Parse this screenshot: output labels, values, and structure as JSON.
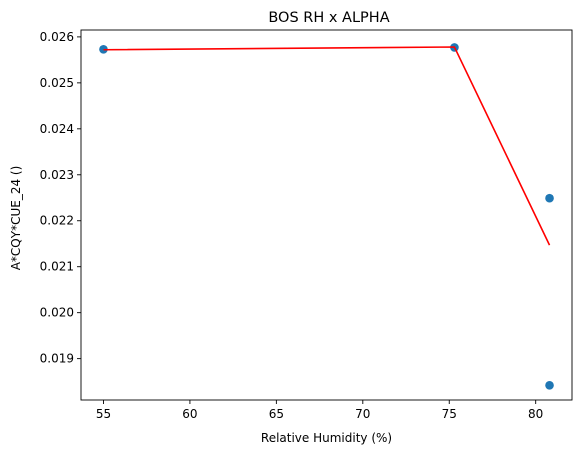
{
  "chart_data": {
    "type": "scatter",
    "title": "BOS RH x ALPHA",
    "xlabel": "Relative Humidity (%)",
    "ylabel": "A*CQY*CUE_24 ()",
    "xlim": [
      53.7,
      82.1
    ],
    "ylim": [
      0.0181,
      0.02615
    ],
    "xticks": [
      55,
      60,
      65,
      70,
      75,
      80
    ],
    "yticks": [
      0.019,
      0.02,
      0.021,
      0.022,
      0.023,
      0.024,
      0.025,
      0.026
    ],
    "ytick_labels": [
      "0.019",
      "0.020",
      "0.021",
      "0.022",
      "0.023",
      "0.024",
      "0.025",
      "0.026"
    ],
    "grid": false,
    "series": [
      {
        "kind": "scatter",
        "color": "#1f77b4",
        "points": [
          {
            "x": 55.0,
            "y": 0.02573
          },
          {
            "x": 75.3,
            "y": 0.02577
          },
          {
            "x": 80.8,
            "y": 0.02249
          },
          {
            "x": 80.8,
            "y": 0.01842
          }
        ]
      },
      {
        "kind": "line",
        "color": "#ff0000",
        "points": [
          {
            "x": 55.0,
            "y": 0.02572
          },
          {
            "x": 75.3,
            "y": 0.02578
          },
          {
            "x": 80.8,
            "y": 0.02147
          }
        ]
      }
    ]
  }
}
